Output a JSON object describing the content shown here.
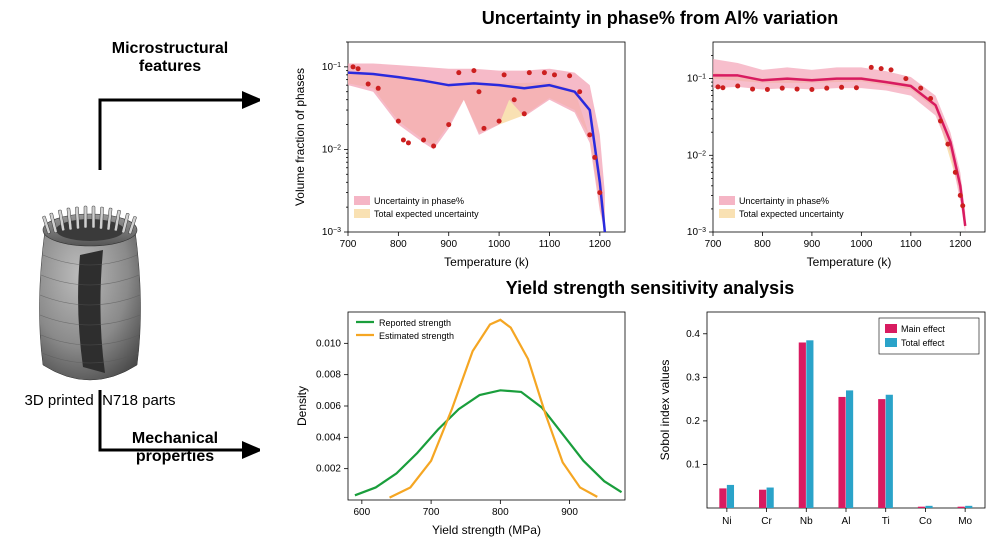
{
  "left": {
    "microstructural_label": "Microstructural\nfeatures",
    "mechanical_label": "Mechanical\nproperties",
    "caption": "3D printed IN718 parts",
    "turbine_gray": "#777777",
    "turbine_dark": "#3a3a3a",
    "arrow_color": "#000000"
  },
  "titles": {
    "top": "Uncertainty in phase% from Al% variation",
    "bottom": "Yield strength sensitivity analysis",
    "title_fontsize": 18
  },
  "phase_chart_left": {
    "type": "line+band",
    "xlabel": "Temperature (k)",
    "ylabel": "Volume fraction of phases",
    "xlim": [
      700,
      1250
    ],
    "xticks": [
      700,
      800,
      900,
      1000,
      1100,
      1200
    ],
    "yscale": "log",
    "ylim": [
      0.001,
      0.2
    ],
    "ytick_exp": [
      -3,
      -2,
      -1
    ],
    "line_color": "#2a2add",
    "line_width": 2.5,
    "band_color": "#f3a3b6",
    "band_opacity": 0.75,
    "band2_color": "#f8d9a0",
    "band2_opacity": 0.8,
    "marker_color": "#cc1f1f",
    "marker_size": 2.5,
    "legend": {
      "items": [
        {
          "swatch": "#f3a3b6",
          "label": "Uncertainty in phase%"
        },
        {
          "swatch": "#f8d9a0",
          "label": "Total expected uncertainty"
        }
      ]
    },
    "line_points": [
      [
        700,
        0.085
      ],
      [
        750,
        0.082
      ],
      [
        800,
        0.075
      ],
      [
        850,
        0.068
      ],
      [
        900,
        0.06
      ],
      [
        950,
        0.063
      ],
      [
        1000,
        0.06
      ],
      [
        1050,
        0.055
      ],
      [
        1100,
        0.06
      ],
      [
        1150,
        0.05
      ],
      [
        1180,
        0.03
      ],
      [
        1200,
        0.004
      ],
      [
        1210,
        0.001
      ]
    ],
    "band_upper": [
      [
        700,
        0.11
      ],
      [
        750,
        0.11
      ],
      [
        800,
        0.105
      ],
      [
        850,
        0.1
      ],
      [
        900,
        0.095
      ],
      [
        950,
        0.095
      ],
      [
        1000,
        0.09
      ],
      [
        1050,
        0.09
      ],
      [
        1100,
        0.095
      ],
      [
        1150,
        0.085
      ],
      [
        1180,
        0.06
      ],
      [
        1200,
        0.015
      ],
      [
        1210,
        0.003
      ]
    ],
    "band_lower": [
      [
        700,
        0.06
      ],
      [
        750,
        0.05
      ],
      [
        800,
        0.02
      ],
      [
        850,
        0.012
      ],
      [
        870,
        0.01
      ],
      [
        900,
        0.018
      ],
      [
        930,
        0.04
      ],
      [
        960,
        0.015
      ],
      [
        1000,
        0.02
      ],
      [
        1020,
        0.04
      ],
      [
        1050,
        0.025
      ],
      [
        1100,
        0.04
      ],
      [
        1150,
        0.028
      ],
      [
        1180,
        0.012
      ],
      [
        1200,
        0.0018
      ],
      [
        1210,
        0.001
      ]
    ],
    "band2_upper": [
      [
        700,
        0.085
      ],
      [
        800,
        0.075
      ],
      [
        900,
        0.062
      ],
      [
        1000,
        0.063
      ],
      [
        1100,
        0.065
      ],
      [
        1150,
        0.052
      ],
      [
        1200,
        0.006
      ],
      [
        1210,
        0.0015
      ]
    ],
    "band2_lower": [
      [
        700,
        0.063
      ],
      [
        750,
        0.055
      ],
      [
        800,
        0.022
      ],
      [
        850,
        0.013
      ],
      [
        870,
        0.011
      ],
      [
        900,
        0.02
      ],
      [
        930,
        0.04
      ],
      [
        960,
        0.016
      ],
      [
        1000,
        0.02
      ],
      [
        1050,
        0.026
      ],
      [
        1100,
        0.042
      ],
      [
        1150,
        0.03
      ],
      [
        1180,
        0.014
      ],
      [
        1200,
        0.002
      ],
      [
        1210,
        0.001
      ]
    ],
    "scatter_points": [
      [
        710,
        0.1
      ],
      [
        720,
        0.095
      ],
      [
        740,
        0.062
      ],
      [
        760,
        0.055
      ],
      [
        800,
        0.022
      ],
      [
        810,
        0.013
      ],
      [
        820,
        0.012
      ],
      [
        850,
        0.013
      ],
      [
        870,
        0.011
      ],
      [
        900,
        0.02
      ],
      [
        920,
        0.085
      ],
      [
        950,
        0.09
      ],
      [
        960,
        0.05
      ],
      [
        970,
        0.018
      ],
      [
        1000,
        0.022
      ],
      [
        1010,
        0.08
      ],
      [
        1030,
        0.04
      ],
      [
        1050,
        0.027
      ],
      [
        1060,
        0.085
      ],
      [
        1090,
        0.085
      ],
      [
        1110,
        0.08
      ],
      [
        1140,
        0.078
      ],
      [
        1160,
        0.05
      ],
      [
        1180,
        0.015
      ],
      [
        1190,
        0.008
      ],
      [
        1200,
        0.003
      ]
    ]
  },
  "phase_chart_right": {
    "type": "line+band",
    "xlabel": "Temperature (k)",
    "ylabel": "",
    "xlim": [
      700,
      1250
    ],
    "xticks": [
      700,
      800,
      900,
      1000,
      1100,
      1200
    ],
    "yscale": "log",
    "ylim": [
      0.001,
      0.3
    ],
    "ytick_exp": [
      -3,
      -2,
      -1
    ],
    "line_color": "#d81b60",
    "line_width": 2.5,
    "band_color": "#f3a3b6",
    "band_opacity": 0.7,
    "band2_color": "#f8d9a0",
    "band2_opacity": 0.8,
    "marker_color": "#cc1f1f",
    "marker_size": 2.5,
    "legend": {
      "items": [
        {
          "swatch": "#f3a3b6",
          "label": "Uncertainty in phase%"
        },
        {
          "swatch": "#f8d9a0",
          "label": "Total expected uncertainty"
        }
      ]
    },
    "line_points": [
      [
        700,
        0.11
      ],
      [
        750,
        0.11
      ],
      [
        800,
        0.095
      ],
      [
        850,
        0.1
      ],
      [
        900,
        0.095
      ],
      [
        950,
        0.1
      ],
      [
        1000,
        0.1
      ],
      [
        1050,
        0.09
      ],
      [
        1100,
        0.08
      ],
      [
        1150,
        0.045
      ],
      [
        1180,
        0.015
      ],
      [
        1200,
        0.004
      ],
      [
        1210,
        0.0012
      ]
    ],
    "band_upper": [
      [
        700,
        0.18
      ],
      [
        750,
        0.16
      ],
      [
        800,
        0.13
      ],
      [
        850,
        0.14
      ],
      [
        900,
        0.13
      ],
      [
        950,
        0.14
      ],
      [
        1000,
        0.14
      ],
      [
        1050,
        0.125
      ],
      [
        1100,
        0.105
      ],
      [
        1150,
        0.06
      ],
      [
        1180,
        0.02
      ],
      [
        1200,
        0.006
      ],
      [
        1210,
        0.0018
      ]
    ],
    "band_lower": [
      [
        700,
        0.075
      ],
      [
        750,
        0.078
      ],
      [
        800,
        0.072
      ],
      [
        850,
        0.075
      ],
      [
        900,
        0.072
      ],
      [
        950,
        0.075
      ],
      [
        1000,
        0.075
      ],
      [
        1050,
        0.07
      ],
      [
        1100,
        0.06
      ],
      [
        1150,
        0.033
      ],
      [
        1180,
        0.011
      ],
      [
        1200,
        0.0025
      ],
      [
        1210,
        0.001
      ]
    ],
    "band2_upper": [
      [
        700,
        0.12
      ],
      [
        800,
        0.1
      ],
      [
        900,
        0.1
      ],
      [
        1000,
        0.105
      ],
      [
        1100,
        0.085
      ],
      [
        1150,
        0.048
      ],
      [
        1200,
        0.005
      ],
      [
        1210,
        0.0015
      ]
    ],
    "band2_lower": [
      [
        700,
        0.1
      ],
      [
        800,
        0.088
      ],
      [
        900,
        0.088
      ],
      [
        1000,
        0.092
      ],
      [
        1100,
        0.072
      ],
      [
        1150,
        0.04
      ],
      [
        1200,
        0.0032
      ],
      [
        1210,
        0.0011
      ]
    ],
    "scatter_points": [
      [
        710,
        0.078
      ],
      [
        720,
        0.076
      ],
      [
        750,
        0.08
      ],
      [
        780,
        0.073
      ],
      [
        810,
        0.072
      ],
      [
        840,
        0.075
      ],
      [
        870,
        0.073
      ],
      [
        900,
        0.072
      ],
      [
        930,
        0.075
      ],
      [
        960,
        0.077
      ],
      [
        990,
        0.076
      ],
      [
        1020,
        0.14
      ],
      [
        1040,
        0.135
      ],
      [
        1060,
        0.13
      ],
      [
        1090,
        0.1
      ],
      [
        1120,
        0.075
      ],
      [
        1140,
        0.055
      ],
      [
        1160,
        0.028
      ],
      [
        1175,
        0.014
      ],
      [
        1190,
        0.006
      ],
      [
        1200,
        0.003
      ],
      [
        1205,
        0.0022
      ]
    ]
  },
  "density_chart": {
    "type": "line",
    "xlabel": "Yield strength (MPa)",
    "ylabel": "Density",
    "xlim": [
      580,
      980
    ],
    "xticks": [
      600,
      700,
      800,
      900
    ],
    "ylim": [
      0,
      0.012
    ],
    "yticks": [
      0.002,
      0.004,
      0.006,
      0.008,
      0.01
    ],
    "legend": {
      "items": [
        {
          "color": "#1a9e3c",
          "label": "Reported strength"
        },
        {
          "color": "#f5a623",
          "label": "Estimated strength"
        }
      ]
    },
    "series": [
      {
        "color": "#1a9e3c",
        "width": 2.2,
        "points": [
          [
            590,
            0.0003
          ],
          [
            620,
            0.0008
          ],
          [
            650,
            0.0017
          ],
          [
            680,
            0.003
          ],
          [
            710,
            0.0045
          ],
          [
            740,
            0.0058
          ],
          [
            770,
            0.0067
          ],
          [
            800,
            0.007
          ],
          [
            830,
            0.0069
          ],
          [
            860,
            0.0059
          ],
          [
            890,
            0.0042
          ],
          [
            920,
            0.0025
          ],
          [
            950,
            0.0012
          ],
          [
            975,
            0.0005
          ]
        ]
      },
      {
        "color": "#f5a623",
        "width": 2.2,
        "points": [
          [
            640,
            0.00015
          ],
          [
            670,
            0.0008
          ],
          [
            700,
            0.0025
          ],
          [
            730,
            0.0058
          ],
          [
            760,
            0.0095
          ],
          [
            785,
            0.0112
          ],
          [
            800,
            0.0115
          ],
          [
            815,
            0.011
          ],
          [
            840,
            0.009
          ],
          [
            865,
            0.0055
          ],
          [
            890,
            0.0024
          ],
          [
            915,
            0.0008
          ],
          [
            940,
            0.0002
          ]
        ]
      }
    ]
  },
  "sobol_chart": {
    "type": "bar",
    "xlabel": "",
    "ylabel": "Sobol index values",
    "categories": [
      "Ni",
      "Cr",
      "Nb",
      "Al",
      "Ti",
      "Co",
      "Mo"
    ],
    "ylim": [
      0,
      0.45
    ],
    "yticks": [
      0.1,
      0.2,
      0.3,
      0.4
    ],
    "bar_width": 0.38,
    "series": [
      {
        "label": "Main effect",
        "color": "#d81b60",
        "values": [
          0.045,
          0.042,
          0.38,
          0.255,
          0.25,
          0.003,
          0.003
        ]
      },
      {
        "label": "Total effect",
        "color": "#2aa3c9",
        "values": [
          0.053,
          0.047,
          0.385,
          0.27,
          0.26,
          0.005,
          0.005
        ]
      }
    ]
  }
}
